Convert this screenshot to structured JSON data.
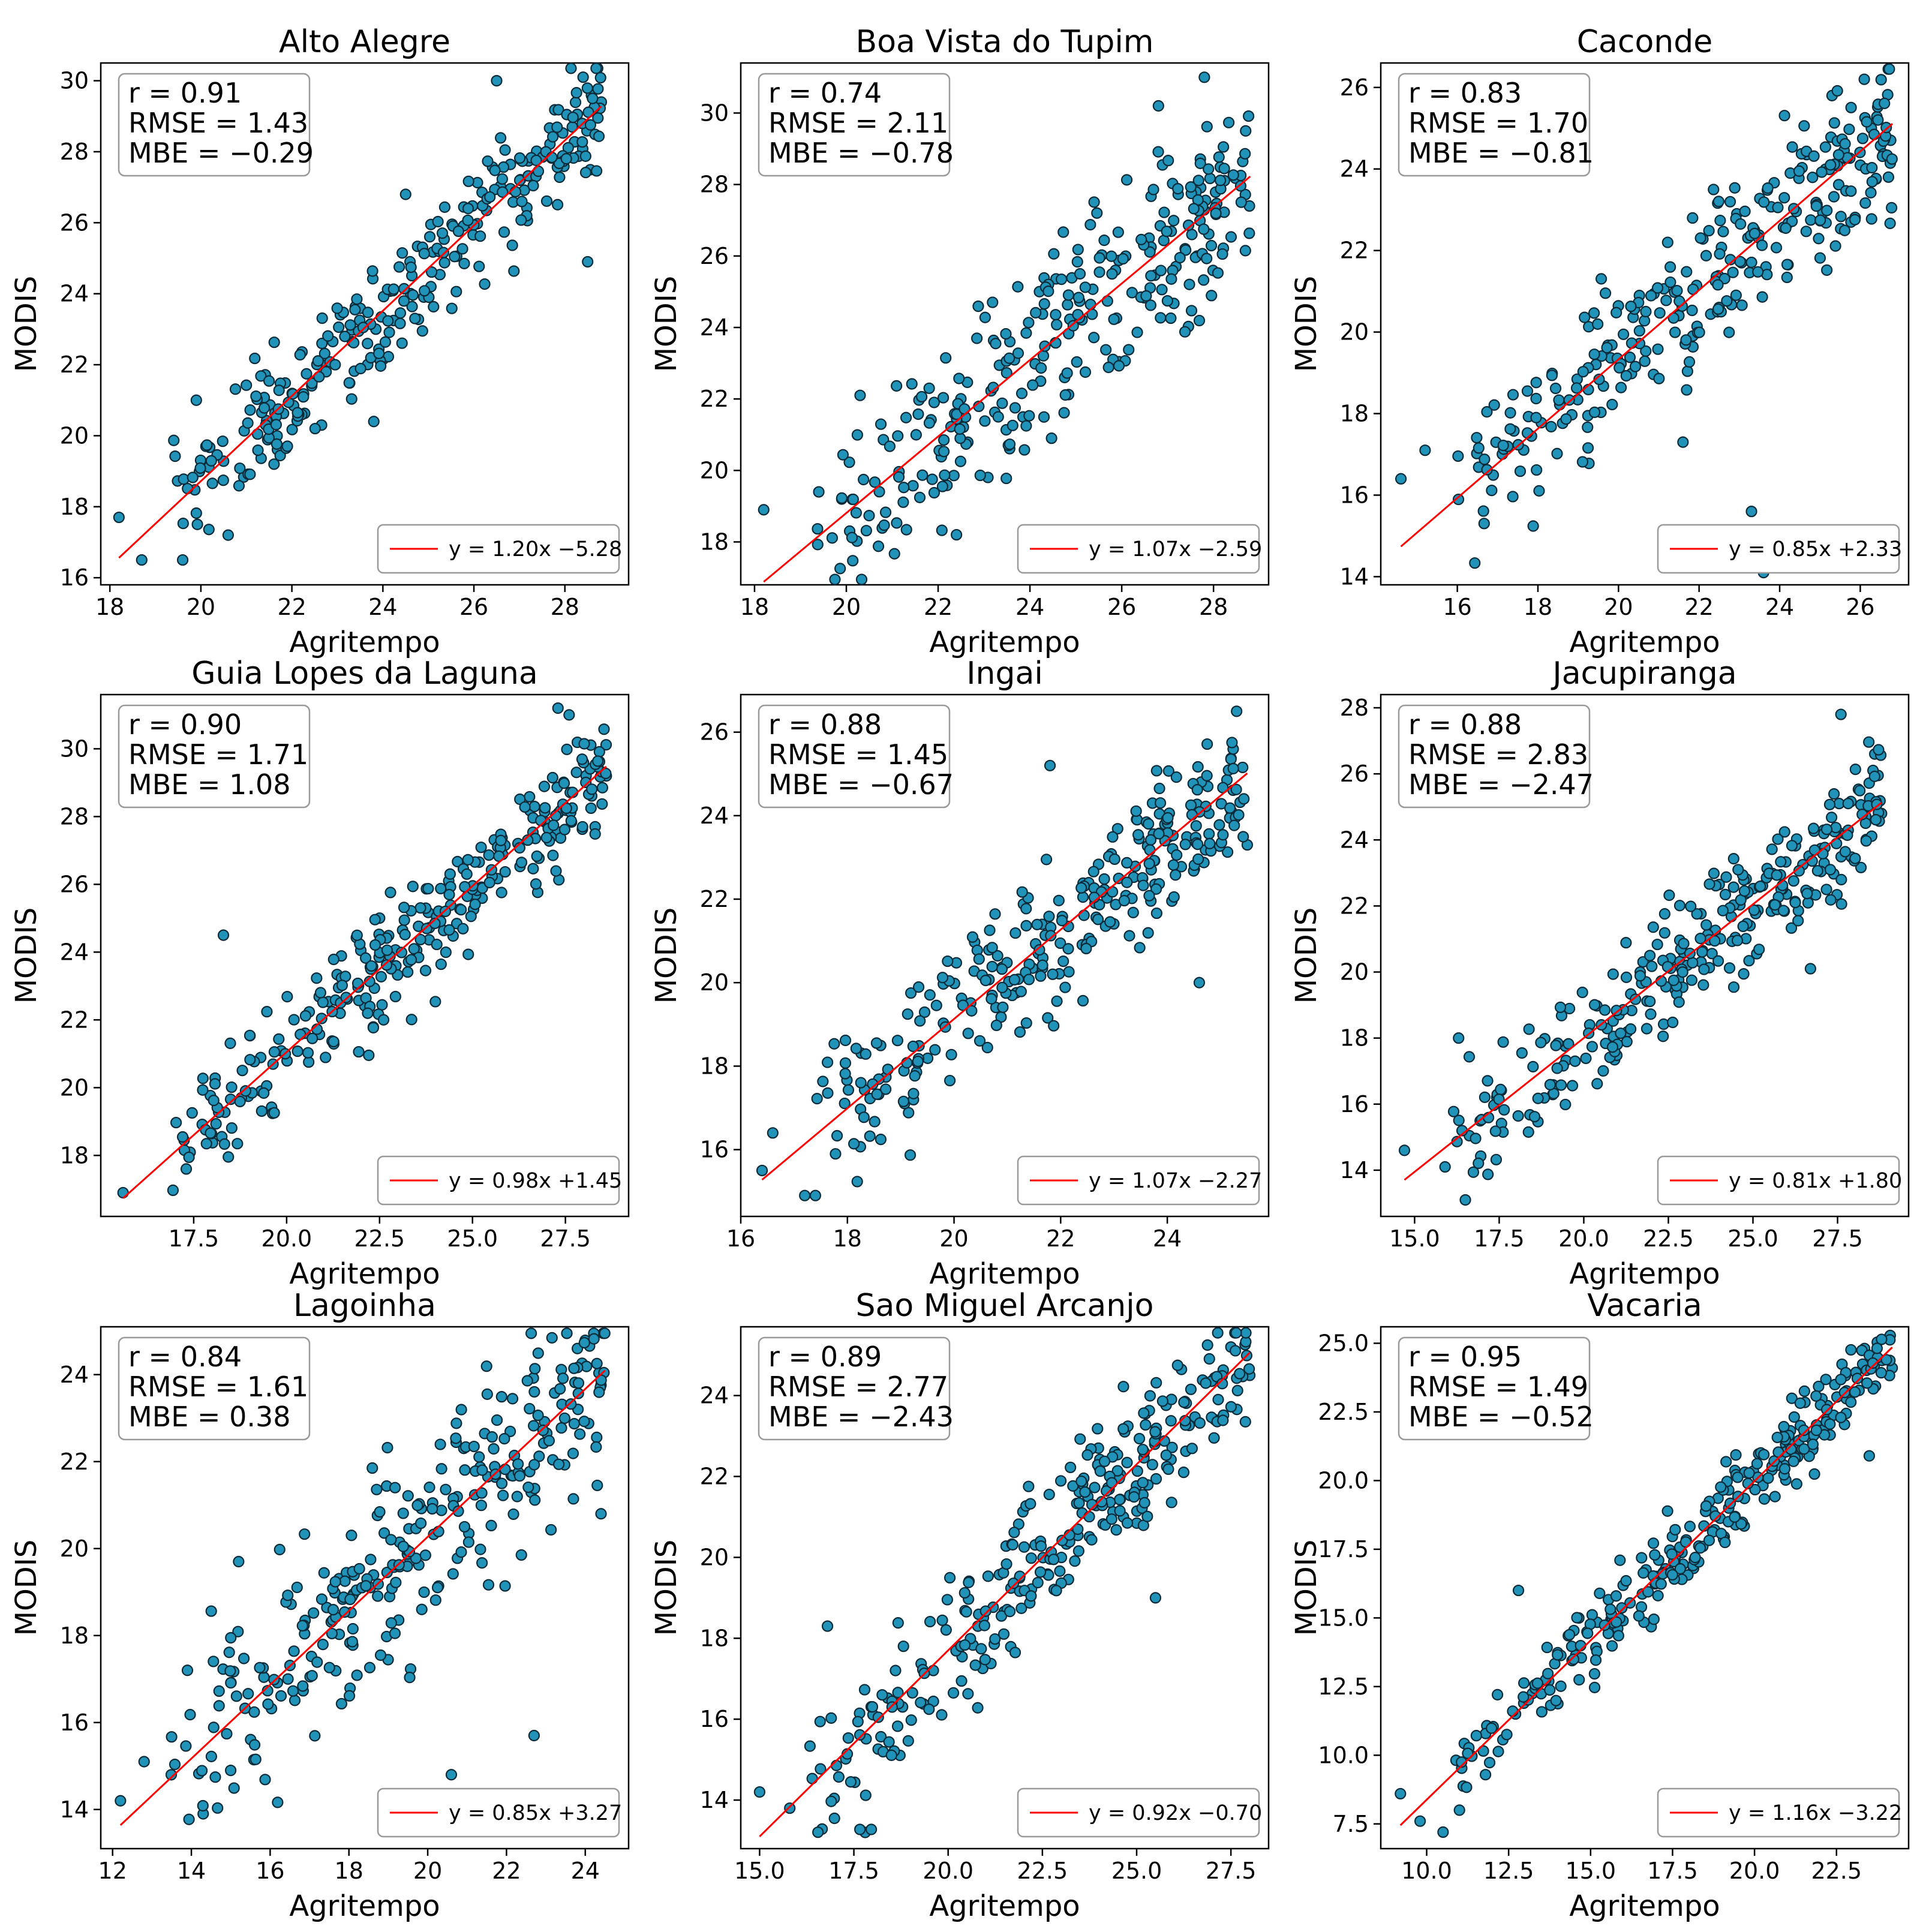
{
  "colors": {
    "points": "#2293b8",
    "point_edge": "#0c2a38",
    "fit_line": "#ff0000"
  },
  "chart_data": [
    {
      "type": "scatter",
      "title": "Alto Alegre",
      "xlabel": "Agritempo",
      "ylabel": "MODIS",
      "xlim": [
        17.8,
        29.4
      ],
      "ylim": [
        15.8,
        30.5
      ],
      "xticks": [
        18,
        20,
        22,
        24,
        26,
        28
      ],
      "yticks": [
        16,
        18,
        20,
        22,
        24,
        26,
        28,
        30
      ],
      "fit": {
        "slope": 1.2,
        "intercept": -5.28,
        "x_range": [
          18.2,
          28.8
        ]
      },
      "stats": [
        "r = 0.91",
        "RMSE = 1.43",
        "MBE = −0.29"
      ],
      "legend": "y = 1.20x −5.28",
      "legend_position": "lower-right",
      "points": {
        "x_range": [
          18.2,
          28.8
        ],
        "n": 300,
        "sd": 1.2,
        "seed": 11,
        "samples": [
          [
            18.2,
            17.7
          ],
          [
            18.7,
            16.5
          ],
          [
            19.6,
            16.5
          ],
          [
            19.9,
            21.0
          ],
          [
            24.5,
            26.8
          ],
          [
            26.5,
            30.0
          ],
          [
            28.4,
            30.1
          ],
          [
            28.8,
            29.4
          ],
          [
            20.6,
            17.2
          ],
          [
            23.8,
            20.4
          ],
          [
            28.5,
            24.9
          ]
        ]
      }
    },
    {
      "type": "scatter",
      "title": "Boa Vista do Tupim",
      "xlabel": "Agritempo",
      "ylabel": "MODIS",
      "xlim": [
        17.7,
        29.2
      ],
      "ylim": [
        16.8,
        31.4
      ],
      "xticks": [
        18,
        20,
        22,
        24,
        26,
        28
      ],
      "yticks": [
        18,
        20,
        22,
        24,
        26,
        28,
        30
      ],
      "fit": {
        "slope": 1.07,
        "intercept": -2.59,
        "x_range": [
          18.2,
          28.8
        ]
      },
      "stats": [
        "r = 0.74",
        "RMSE = 2.11",
        "MBE = −0.78"
      ],
      "legend": "y = 1.07x −2.59",
      "legend_position": "lower-right",
      "points": {
        "x_range": [
          18.2,
          28.8
        ],
        "n": 300,
        "sd": 1.8,
        "seed": 22,
        "samples": [
          [
            18.2,
            18.9
          ],
          [
            19.4,
            19.4
          ],
          [
            19.9,
            19.2
          ],
          [
            20.3,
            22.1
          ],
          [
            27.8,
            31.0
          ],
          [
            28.7,
            29.5
          ],
          [
            22.4,
            18.2
          ],
          [
            26.8,
            30.2
          ]
        ]
      }
    },
    {
      "type": "scatter",
      "title": "Caconde",
      "xlabel": "Agritempo",
      "ylabel": "MODIS",
      "xlim": [
        14.1,
        27.2
      ],
      "ylim": [
        13.8,
        26.6
      ],
      "xticks": [
        16,
        18,
        20,
        22,
        24,
        26
      ],
      "yticks": [
        14,
        16,
        18,
        20,
        22,
        24,
        26
      ],
      "fit": {
        "slope": 0.85,
        "intercept": 2.33,
        "x_range": [
          14.6,
          26.8
        ]
      },
      "stats": [
        "r = 0.83",
        "RMSE = 1.70",
        "MBE = −0.81"
      ],
      "legend": "y = 0.85x +2.33",
      "legend_position": "lower-right",
      "points": {
        "x_range": [
          14.6,
          26.8
        ],
        "n": 300,
        "sd": 1.3,
        "seed": 33,
        "samples": [
          [
            14.6,
            16.4
          ],
          [
            15.2,
            17.1
          ],
          [
            23.6,
            14.1
          ],
          [
            23.3,
            15.6
          ],
          [
            26.1,
            26.2
          ],
          [
            26.7,
            23.8
          ],
          [
            25.3,
            25.8
          ],
          [
            21.6,
            17.3
          ]
        ]
      }
    },
    {
      "type": "scatter",
      "title": "Guia Lopes da Laguna",
      "xlabel": "Agritempo",
      "ylabel": "MODIS",
      "xlim": [
        15.0,
        29.2
      ],
      "ylim": [
        16.2,
        31.6
      ],
      "xticks": [
        17.5,
        20.0,
        22.5,
        25.0,
        27.5
      ],
      "yticks": [
        18,
        20,
        22,
        24,
        26,
        28,
        30
      ],
      "fit": {
        "slope": 0.98,
        "intercept": 1.45,
        "x_range": [
          15.6,
          28.6
        ]
      },
      "stats": [
        "r = 0.90",
        "RMSE = 1.71",
        "MBE = 1.08"
      ],
      "legend": "y = 0.98x +1.45",
      "legend_position": "lower-right",
      "points": {
        "x_range": [
          15.6,
          28.6
        ],
        "n": 300,
        "sd": 1.2,
        "seed": 44,
        "samples": [
          [
            15.6,
            16.9
          ],
          [
            17.3,
            17.6
          ],
          [
            18.3,
            24.5
          ],
          [
            27.3,
            31.2
          ],
          [
            27.6,
            31.0
          ],
          [
            28.6,
            29.2
          ],
          [
            28.3,
            27.7
          ]
        ]
      }
    },
    {
      "type": "scatter",
      "title": "Ingai",
      "xlabel": "Agritempo",
      "ylabel": "MODIS",
      "xlim": [
        16.0,
        25.9
      ],
      "ylim": [
        14.4,
        26.9
      ],
      "xticks": [
        16,
        18,
        20,
        22,
        24
      ],
      "yticks": [
        16,
        18,
        20,
        22,
        24,
        26
      ],
      "fit": {
        "slope": 1.07,
        "intercept": -2.27,
        "x_range": [
          16.4,
          25.5
        ]
      },
      "stats": [
        "r = 0.88",
        "RMSE = 1.45",
        "MBE = −0.67"
      ],
      "legend": "y = 1.07x −2.27",
      "legend_position": "lower-right",
      "points": {
        "x_range": [
          16.4,
          25.5
        ],
        "n": 300,
        "sd": 1.15,
        "seed": 55,
        "samples": [
          [
            16.4,
            15.5
          ],
          [
            16.6,
            16.4
          ],
          [
            17.2,
            14.9
          ],
          [
            17.4,
            14.9
          ],
          [
            25.3,
            26.5
          ],
          [
            25.5,
            23.3
          ],
          [
            24.6,
            20.0
          ],
          [
            21.8,
            25.2
          ]
        ]
      }
    },
    {
      "type": "scatter",
      "title": "Jacupiranga",
      "xlabel": "Agritempo",
      "ylabel": "MODIS",
      "xlim": [
        14.0,
        29.6
      ],
      "ylim": [
        12.6,
        28.4
      ],
      "xticks": [
        15.0,
        17.5,
        20.0,
        22.5,
        25.0,
        27.5
      ],
      "yticks": [
        14,
        16,
        18,
        20,
        22,
        24,
        26,
        28
      ],
      "fit": {
        "slope": 0.81,
        "intercept": 1.8,
        "x_range": [
          14.7,
          28.8
        ]
      },
      "stats": [
        "r = 0.88",
        "RMSE = 2.83",
        "MBE = −2.47"
      ],
      "legend": "y = 0.81x +1.80",
      "legend_position": "lower-right",
      "points": {
        "x_range": [
          14.7,
          28.8
        ],
        "n": 300,
        "sd": 1.25,
        "seed": 66,
        "samples": [
          [
            14.7,
            14.6
          ],
          [
            16.5,
            13.1
          ],
          [
            16.3,
            18.0
          ],
          [
            15.9,
            14.1
          ],
          [
            27.6,
            27.8
          ],
          [
            28.6,
            26.6
          ],
          [
            28.8,
            24.8
          ],
          [
            26.7,
            20.1
          ]
        ]
      }
    },
    {
      "type": "scatter",
      "title": "Lagoinha",
      "xlabel": "Agritempo",
      "ylabel": "MODIS",
      "xlim": [
        11.7,
        25.1
      ],
      "ylim": [
        13.1,
        25.1
      ],
      "xticks": [
        12,
        14,
        16,
        18,
        20,
        22,
        24
      ],
      "yticks": [
        14,
        16,
        18,
        20,
        22,
        24
      ],
      "fit": {
        "slope": 0.85,
        "intercept": 3.27,
        "x_range": [
          12.2,
          24.5
        ]
      },
      "stats": [
        "r = 0.84",
        "RMSE = 1.61",
        "MBE = 0.38"
      ],
      "legend": "y = 0.85x +3.27",
      "legend_position": "lower-right",
      "points": {
        "x_range": [
          12.2,
          24.5
        ],
        "n": 300,
        "sd": 1.6,
        "seed": 77,
        "samples": [
          [
            12.2,
            14.2
          ],
          [
            12.8,
            15.1
          ],
          [
            13.9,
            17.2
          ],
          [
            14.3,
            13.9
          ],
          [
            24.4,
            20.8
          ],
          [
            23.8,
            24.6
          ],
          [
            22.7,
            15.7
          ],
          [
            20.6,
            14.8
          ],
          [
            15.2,
            19.7
          ]
        ]
      }
    },
    {
      "type": "scatter",
      "title": "Sao Miguel Arcanjo",
      "xlabel": "Agritempo",
      "ylabel": "MODIS",
      "xlim": [
        14.5,
        28.5
      ],
      "ylim": [
        12.8,
        25.7
      ],
      "xticks": [
        15.0,
        17.5,
        20.0,
        22.5,
        25.0,
        27.5
      ],
      "yticks": [
        14,
        16,
        18,
        20,
        22,
        24
      ],
      "fit": {
        "slope": 0.92,
        "intercept": -0.7,
        "x_range": [
          15.0,
          28.0
        ]
      },
      "stats": [
        "r = 0.89",
        "RMSE = 2.77",
        "MBE = −2.43"
      ],
      "legend": "y = 0.92x −0.70",
      "legend_position": "lower-right",
      "points": {
        "x_range": [
          15.0,
          28.0
        ],
        "n": 300,
        "sd": 1.2,
        "seed": 88,
        "samples": [
          [
            15.0,
            14.2
          ],
          [
            15.8,
            13.8
          ],
          [
            17.8,
            13.2
          ],
          [
            16.8,
            18.3
          ],
          [
            27.5,
            25.2
          ],
          [
            28.0,
            24.5
          ],
          [
            25.5,
            19.0
          ]
        ]
      }
    },
    {
      "type": "scatter",
      "title": "Vacaria",
      "xlabel": "Agritempo",
      "ylabel": "MODIS",
      "xlim": [
        8.6,
        24.7
      ],
      "ylim": [
        6.6,
        25.6
      ],
      "xticks": [
        10.0,
        12.5,
        15.0,
        17.5,
        20.0,
        22.5
      ],
      "yticks": [
        7.5,
        10.0,
        12.5,
        15.0,
        17.5,
        20.0,
        22.5,
        25.0
      ],
      "fit": {
        "slope": 1.16,
        "intercept": -3.22,
        "x_range": [
          9.2,
          24.2
        ]
      },
      "stats": [
        "r = 0.95",
        "RMSE = 1.49",
        "MBE = −0.52"
      ],
      "legend": "y = 1.16x −3.22",
      "legend_position": "lower-right",
      "points": {
        "x_range": [
          9.2,
          24.2
        ],
        "n": 300,
        "sd": 1.0,
        "seed": 99,
        "samples": [
          [
            9.2,
            8.6
          ],
          [
            9.8,
            7.6
          ],
          [
            10.5,
            7.2
          ],
          [
            11.0,
            8.0
          ],
          [
            24.2,
            24.1
          ],
          [
            12.8,
            16.0
          ],
          [
            23.5,
            20.9
          ]
        ]
      }
    }
  ]
}
